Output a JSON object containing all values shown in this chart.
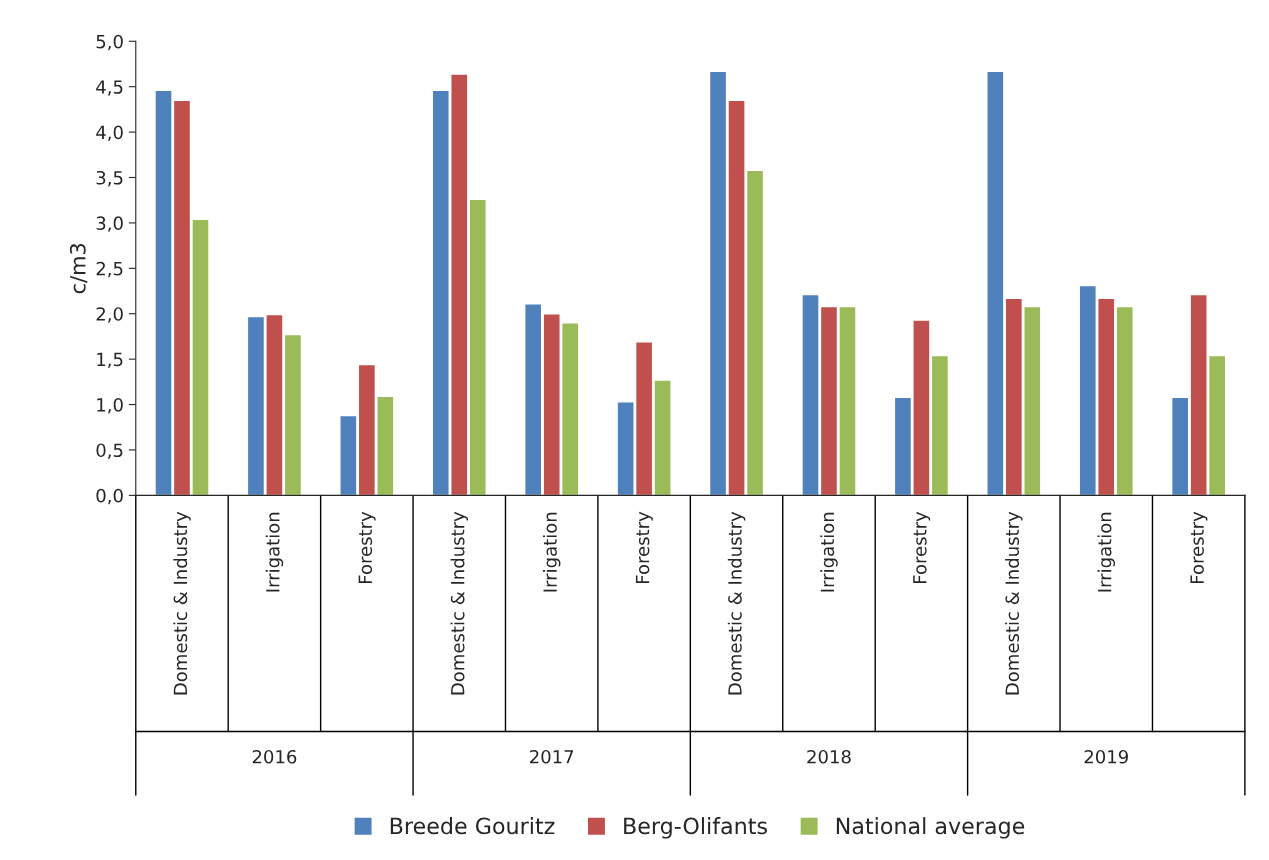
{
  "chart_data": {
    "type": "bar",
    "ylabel": "c/m3",
    "categories": [
      "Domestic & Industry",
      "Irrigation",
      "Forestry",
      "Domestic & Industry",
      "Irrigation",
      "Forestry",
      "Domestic & Industry",
      "Irrigation",
      "Forestry",
      "Domestic & Industry",
      "Irrigation",
      "Forestry"
    ],
    "annotations": [
      "2016",
      "2017",
      "2018",
      "2019"
    ],
    "series": [
      {
        "name": "Breede Gouritz",
        "color": "#4f81bd",
        "values": [
          4.46,
          1.97,
          0.88,
          4.46,
          2.11,
          1.03,
          4.67,
          2.21,
          1.08,
          4.67,
          2.31,
          1.08
        ]
      },
      {
        "name": "Berg-Olifants",
        "color": "#c0504d",
        "values": [
          4.35,
          1.99,
          1.44,
          4.64,
          2.0,
          1.69,
          4.35,
          2.08,
          1.93,
          2.17,
          2.17,
          2.21
        ]
      },
      {
        "name": "National average",
        "color": "#9bbb59",
        "values": [
          3.04,
          1.77,
          1.09,
          3.26,
          1.9,
          1.27,
          3.58,
          2.08,
          1.54,
          2.08,
          2.08,
          1.54
        ]
      }
    ],
    "ylim": [
      0,
      5
    ],
    "yticks": [
      {
        "value": 0,
        "label": "0,0"
      },
      {
        "value": 0.5,
        "label": "0,5"
      },
      {
        "value": 1,
        "label": "1,0"
      },
      {
        "value": 1.5,
        "label": "1,5"
      },
      {
        "value": 2,
        "label": "2,0"
      },
      {
        "value": 2.5,
        "label": "2,5"
      },
      {
        "value": 3,
        "label": "3,0"
      },
      {
        "value": 3.5,
        "label": "3,5"
      },
      {
        "value": 4,
        "label": "4,0"
      },
      {
        "value": 4.5,
        "label": "4,5"
      },
      {
        "value": 5,
        "label": "5,0"
      }
    ],
    "legend": "bottom"
  }
}
